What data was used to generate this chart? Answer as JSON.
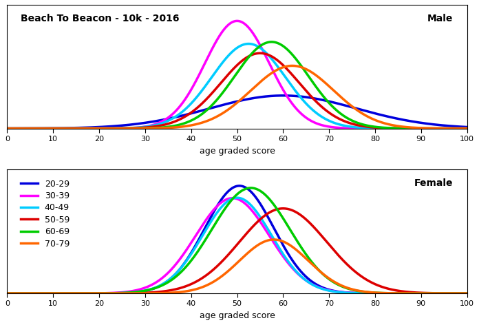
{
  "title": "Beach To Beacon - 10k - 2016",
  "xlabel": "age graded score",
  "xlim": [
    0,
    100
  ],
  "male_label": "Male",
  "female_label": "Female",
  "age_groups": [
    "20-29",
    "30-39",
    "40-49",
    "50-59",
    "60-69",
    "70-79"
  ],
  "colors": [
    "#0000DD",
    "#FF00FF",
    "#00CCFF",
    "#DD0000",
    "#00CC00",
    "#FF6600"
  ],
  "linewidth": 2.5,
  "male": {
    "means": [
      60.0,
      50.0,
      52.5,
      55.0,
      57.5,
      62.0
    ],
    "stds": [
      16.0,
      7.0,
      8.0,
      8.5,
      8.0,
      9.0
    ],
    "scales": [
      0.7,
      1.0,
      0.9,
      0.85,
      0.92,
      0.75
    ]
  },
  "female": {
    "means": [
      50.5,
      49.0,
      50.0,
      60.0,
      53.0,
      58.0
    ],
    "stds": [
      7.5,
      8.0,
      7.5,
      9.5,
      8.5,
      7.5
    ],
    "scales": [
      0.9,
      0.85,
      0.8,
      0.9,
      1.0,
      0.45
    ]
  },
  "figsize": [
    6.96,
    4.72
  ],
  "dpi": 100,
  "tick_fontsize": 8,
  "label_fontsize": 9,
  "title_fontsize": 10,
  "legend_fontsize": 9
}
